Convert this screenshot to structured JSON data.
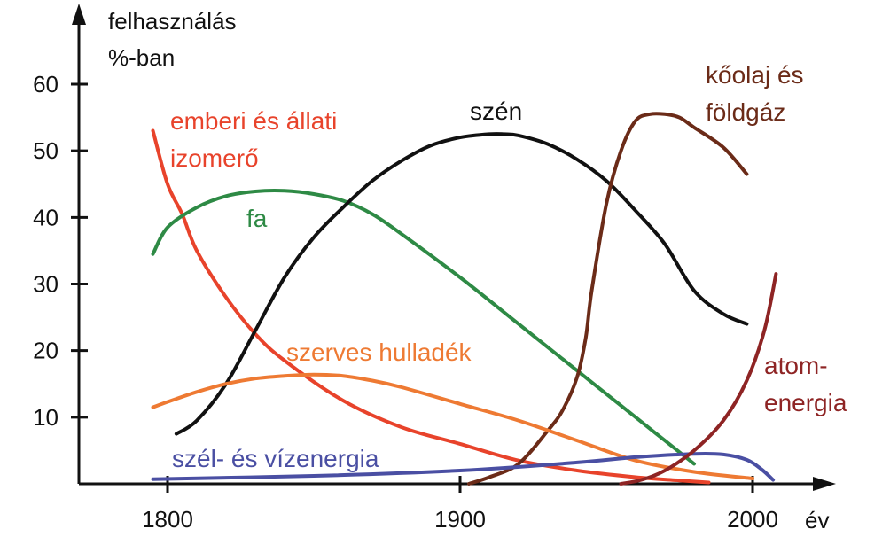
{
  "chart_data": {
    "type": "line",
    "title": "",
    "ylabel": [
      "felhasználás",
      "%-ban"
    ],
    "xlabel": "év",
    "xlim": [
      1770,
      2020
    ],
    "ylim": [
      0,
      70
    ],
    "x_ticks": [
      1800,
      1900,
      2000
    ],
    "y_ticks": [
      10,
      20,
      30,
      40,
      50,
      60
    ],
    "grid": false,
    "legend": "none (series labeled directly on the chart)",
    "series": [
      {
        "key": "izomero",
        "name": [
          "emberi és állati",
          "izomerő"
        ],
        "color": "#e8432b",
        "x": [
          1795,
          1800,
          1805,
          1810,
          1820,
          1830,
          1840,
          1860,
          1880,
          1900,
          1920,
          1940,
          1960,
          1975,
          1985
        ],
        "y": [
          53,
          45,
          40.5,
          35,
          28,
          22.5,
          18.5,
          12.5,
          8.5,
          6,
          3.5,
          2,
          1,
          0.5,
          0.2
        ]
      },
      {
        "key": "fa",
        "name": [
          "fa"
        ],
        "color": "#2e8a45",
        "x": [
          1795,
          1800,
          1810,
          1820,
          1830,
          1840,
          1850,
          1860,
          1870,
          1880,
          1900,
          1920,
          1940,
          1960,
          1970,
          1980
        ],
        "y": [
          34.5,
          38.5,
          41.5,
          43.2,
          43.9,
          44,
          43.5,
          42.5,
          40.5,
          37.5,
          31,
          24,
          17,
          10,
          6.5,
          3
        ]
      },
      {
        "key": "szen",
        "name": [
          "szén"
        ],
        "color": "#111111",
        "x": [
          1803,
          1810,
          1820,
          1830,
          1840,
          1850,
          1860,
          1870,
          1880,
          1890,
          1900,
          1910,
          1915,
          1920,
          1930,
          1940,
          1950,
          1960,
          1970,
          1980,
          1990,
          1998
        ],
        "y": [
          7.5,
          9.5,
          15,
          23,
          31,
          37,
          41.5,
          45.5,
          48.5,
          50.8,
          52,
          52.5,
          52.5,
          52.3,
          51,
          48.7,
          45.5,
          41,
          36,
          29,
          25.5,
          24
        ]
      },
      {
        "key": "olaj",
        "name": [
          "kőolaj és",
          "földgáz"
        ],
        "color": "#6b2b18",
        "x": [
          1903,
          1910,
          1920,
          1930,
          1935,
          1940,
          1943,
          1945,
          1950,
          1955,
          1960,
          1965,
          1970,
          1975,
          1980,
          1990,
          1998
        ],
        "y": [
          0,
          1,
          3,
          8,
          11,
          16,
          22,
          29,
          42,
          50,
          54.5,
          55.5,
          55.5,
          55,
          53.5,
          50.5,
          46.5
        ]
      },
      {
        "key": "hulladek",
        "name": [
          "szerves hulladék"
        ],
        "color": "#ee7a33",
        "x": [
          1795,
          1800,
          1810,
          1820,
          1830,
          1840,
          1850,
          1860,
          1870,
          1880,
          1900,
          1920,
          1940,
          1960,
          1980,
          2000
        ],
        "y": [
          11.5,
          12.3,
          13.8,
          15,
          15.8,
          16.2,
          16.4,
          16.2,
          15.5,
          14.5,
          12,
          9.5,
          6.5,
          3.5,
          1.8,
          0.8
        ]
      },
      {
        "key": "szelviz",
        "name": [
          "szél- és vízenergia"
        ],
        "color": "#4a4fa3",
        "x": [
          1795,
          1850,
          1900,
          1940,
          1960,
          1980,
          1990,
          1998,
          2003,
          2007
        ],
        "y": [
          0.7,
          1.2,
          2,
          3.2,
          4,
          4.5,
          4.4,
          3.6,
          2.2,
          0.6
        ]
      },
      {
        "key": "atom",
        "name": [
          "atom-",
          "energia"
        ],
        "color": "#8e2424",
        "x": [
          1955,
          1962,
          1970,
          1980,
          1990,
          1998,
          2004,
          2008
        ],
        "y": [
          0,
          0.6,
          2,
          5,
          9.5,
          15.5,
          23,
          31.5
        ]
      }
    ]
  }
}
